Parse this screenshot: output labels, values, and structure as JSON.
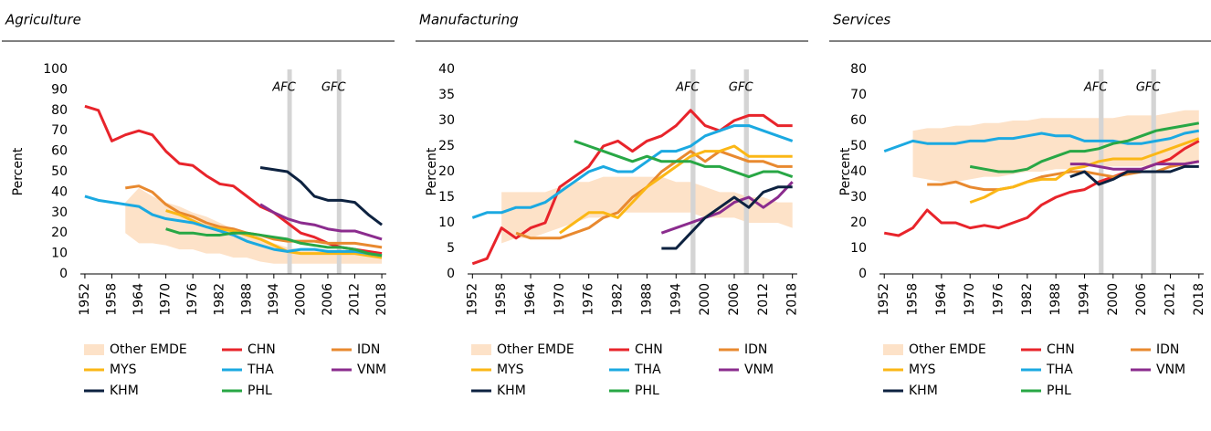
{
  "chart_data": [
    {
      "type": "line",
      "title": "Agriculture",
      "y_label": "Percent",
      "x": [
        1952,
        1955,
        1958,
        1961,
        1964,
        1967,
        1970,
        1973,
        1976,
        1979,
        1982,
        1985,
        1988,
        1991,
        1994,
        1997,
        2000,
        2003,
        2006,
        2009,
        2012,
        2015,
        2018
      ],
      "xlim": [
        1951,
        2019
      ],
      "xticks": [
        1952,
        1958,
        1964,
        1970,
        1976,
        1982,
        1988,
        1994,
        2000,
        2006,
        2012,
        2018
      ],
      "ylim": [
        0,
        100
      ],
      "yticks": [
        0,
        10,
        20,
        30,
        40,
        50,
        60,
        70,
        80,
        90,
        100
      ],
      "shaded_periods": [
        {
          "label": "AFC",
          "start": 1997,
          "end": 1998
        },
        {
          "label": "GFC",
          "start": 2008,
          "end": 2009
        }
      ],
      "series": [
        {
          "name": "Other EMDE",
          "type": "band",
          "color": "#fde2c8",
          "values": [
            null,
            null,
            null,
            [
              20,
              35
            ],
            [
              15,
              42
            ],
            [
              15,
              38
            ],
            [
              14,
              35
            ],
            [
              12,
              33
            ],
            [
              12,
              30
            ],
            [
              10,
              28
            ],
            [
              10,
              25
            ],
            [
              8,
              22
            ],
            [
              8,
              20
            ],
            [
              6,
              18
            ],
            [
              5,
              15
            ],
            [
              5,
              13
            ],
            [
              5,
              12
            ],
            [
              5,
              12
            ],
            [
              5,
              11
            ],
            [
              5,
              11
            ],
            [
              5,
              10
            ],
            [
              5,
              10
            ],
            [
              5,
              9
            ]
          ]
        },
        {
          "name": "CHN",
          "color": "#e8242b",
          "values": [
            82,
            80,
            65,
            68,
            70,
            68,
            60,
            54,
            53,
            48,
            44,
            43,
            38,
            33,
            30,
            25,
            20,
            18,
            15,
            13,
            12,
            11,
            10
          ]
        },
        {
          "name": "IDN",
          "color": "#e8892f",
          "values": [
            null,
            null,
            null,
            42,
            43,
            40,
            34,
            30,
            28,
            25,
            23,
            22,
            20,
            19,
            17,
            16,
            16,
            16,
            15,
            15,
            15,
            14,
            13
          ]
        },
        {
          "name": "MYS",
          "color": "#fbb716",
          "values": [
            null,
            null,
            null,
            null,
            null,
            null,
            31,
            29,
            26,
            23,
            22,
            21,
            19,
            17,
            14,
            11,
            10,
            10,
            10,
            10,
            10,
            9,
            8
          ]
        },
        {
          "name": "THA",
          "color": "#1ba9e1",
          "values": [
            38,
            36,
            35,
            34,
            33,
            29,
            27,
            26,
            25,
            23,
            21,
            19,
            16,
            14,
            12,
            11,
            12,
            12,
            11,
            11,
            11,
            10,
            9
          ]
        },
        {
          "name": "VNM",
          "color": "#8b2c8e",
          "values": [
            null,
            null,
            null,
            null,
            null,
            null,
            null,
            null,
            null,
            null,
            null,
            null,
            null,
            34,
            30,
            27,
            25,
            24,
            22,
            21,
            21,
            19,
            17
          ]
        },
        {
          "name": "KHM",
          "color": "#0d2240",
          "values": [
            null,
            null,
            null,
            null,
            null,
            null,
            null,
            null,
            null,
            null,
            null,
            null,
            null,
            52,
            51,
            50,
            45,
            38,
            36,
            36,
            35,
            29,
            24
          ]
        },
        {
          "name": "PHL",
          "color": "#28a745",
          "values": [
            null,
            null,
            null,
            null,
            null,
            null,
            22,
            20,
            20,
            19,
            19,
            20,
            20,
            19,
            18,
            17,
            15,
            14,
            13,
            13,
            12,
            10,
            9
          ]
        }
      ]
    },
    {
      "type": "line",
      "title": "Manufacturing",
      "y_label": "Percent",
      "x": [
        1952,
        1955,
        1958,
        1961,
        1964,
        1967,
        1970,
        1973,
        1976,
        1979,
        1982,
        1985,
        1988,
        1991,
        1994,
        1997,
        2000,
        2003,
        2006,
        2009,
        2012,
        2015,
        2018
      ],
      "xlim": [
        1951,
        2019
      ],
      "xticks": [
        1952,
        1958,
        1964,
        1970,
        1976,
        1982,
        1988,
        1994,
        2000,
        2006,
        2012,
        2018
      ],
      "ylim": [
        0,
        40
      ],
      "yticks": [
        0,
        5,
        10,
        15,
        20,
        25,
        30,
        35,
        40
      ],
      "shaded_periods": [
        {
          "label": "AFC",
          "start": 1997,
          "end": 1998
        },
        {
          "label": "GFC",
          "start": 2008,
          "end": 2009
        }
      ],
      "series": [
        {
          "name": "Other EMDE",
          "type": "band",
          "color": "#fde2c8",
          "values": [
            null,
            null,
            [
              6,
              16
            ],
            [
              7,
              16
            ],
            [
              7,
              16
            ],
            [
              8,
              16
            ],
            [
              9,
              17
            ],
            [
              10,
              18
            ],
            [
              11,
              18
            ],
            [
              11,
              19
            ],
            [
              12,
              19
            ],
            [
              12,
              19
            ],
            [
              12,
              19
            ],
            [
              12,
              19
            ],
            [
              12,
              18
            ],
            [
              12,
              18
            ],
            [
              11,
              17
            ],
            [
              11,
              16
            ],
            [
              11,
              16
            ],
            [
              10,
              15
            ],
            [
              10,
              15
            ],
            [
              10,
              14
            ],
            [
              9,
              14
            ]
          ]
        },
        {
          "name": "CHN",
          "color": "#e8242b",
          "values": [
            2,
            3,
            9,
            7,
            9,
            10,
            17,
            19,
            21,
            25,
            26,
            24,
            26,
            27,
            29,
            32,
            29,
            28,
            30,
            31,
            31,
            29,
            29
          ]
        },
        {
          "name": "IDN",
          "color": "#e8892f",
          "values": [
            null,
            null,
            null,
            8,
            7,
            7,
            7,
            8,
            9,
            11,
            12,
            15,
            17,
            20,
            22,
            24,
            22,
            24,
            23,
            22,
            22,
            21,
            21
          ]
        },
        {
          "name": "MYS",
          "color": "#fbb716",
          "values": [
            null,
            null,
            null,
            null,
            null,
            null,
            8,
            10,
            12,
            12,
            11,
            14,
            17,
            19,
            21,
            23,
            24,
            24,
            25,
            23,
            23,
            23,
            23
          ]
        },
        {
          "name": "THA",
          "color": "#1ba9e1",
          "values": [
            11,
            12,
            12,
            13,
            13,
            14,
            16,
            18,
            20,
            21,
            20,
            20,
            22,
            24,
            24,
            25,
            27,
            28,
            29,
            29,
            28,
            27,
            26
          ]
        },
        {
          "name": "VNM",
          "color": "#8b2c8e",
          "values": [
            null,
            null,
            null,
            null,
            null,
            null,
            null,
            null,
            null,
            null,
            null,
            null,
            null,
            8,
            9,
            10,
            11,
            12,
            14,
            15,
            13,
            15,
            18
          ]
        },
        {
          "name": "KHM",
          "color": "#0d2240",
          "values": [
            null,
            null,
            null,
            null,
            null,
            null,
            null,
            null,
            null,
            null,
            null,
            null,
            null,
            5,
            5,
            8,
            11,
            13,
            15,
            13,
            16,
            17,
            17
          ]
        },
        {
          "name": "PHL",
          "color": "#28a745",
          "values": [
            null,
            null,
            null,
            null,
            null,
            null,
            null,
            26,
            25,
            24,
            23,
            22,
            23,
            22,
            22,
            22,
            21,
            21,
            20,
            19,
            20,
            20,
            19
          ]
        }
      ]
    },
    {
      "type": "line",
      "title": "Services",
      "y_label": "Percent",
      "x": [
        1952,
        1955,
        1958,
        1961,
        1964,
        1967,
        1970,
        1973,
        1976,
        1979,
        1982,
        1985,
        1988,
        1991,
        1994,
        1997,
        2000,
        2003,
        2006,
        2009,
        2012,
        2015,
        2018
      ],
      "xlim": [
        1951,
        2019
      ],
      "xticks": [
        1952,
        1958,
        1964,
        1970,
        1976,
        1982,
        1988,
        1994,
        2000,
        2006,
        2012,
        2018
      ],
      "ylim": [
        0,
        80
      ],
      "yticks": [
        0,
        10,
        20,
        30,
        40,
        50,
        60,
        70,
        80
      ],
      "shaded_periods": [
        {
          "label": "AFC",
          "start": 1997,
          "end": 1998
        },
        {
          "label": "GFC",
          "start": 2008,
          "end": 2009
        }
      ],
      "series": [
        {
          "name": "Other EMDE",
          "type": "band",
          "color": "#fde2c8",
          "values": [
            null,
            null,
            [
              38,
              56
            ],
            [
              37,
              57
            ],
            [
              36,
              57
            ],
            [
              36,
              58
            ],
            [
              37,
              58
            ],
            [
              38,
              59
            ],
            [
              38,
              59
            ],
            [
              39,
              60
            ],
            [
              40,
              60
            ],
            [
              40,
              61
            ],
            [
              41,
              61
            ],
            [
              41,
              61
            ],
            [
              42,
              61
            ],
            [
              42,
              61
            ],
            [
              42,
              61
            ],
            [
              42,
              62
            ],
            [
              42,
              62
            ],
            [
              43,
              62
            ],
            [
              43,
              63
            ],
            [
              43,
              64
            ],
            [
              44,
              64
            ]
          ]
        },
        {
          "name": "CHN",
          "color": "#e8242b",
          "values": [
            16,
            15,
            18,
            25,
            20,
            20,
            18,
            19,
            18,
            20,
            22,
            27,
            30,
            32,
            33,
            36,
            38,
            40,
            41,
            43,
            45,
            49,
            52
          ]
        },
        {
          "name": "IDN",
          "color": "#e8892f",
          "values": [
            null,
            null,
            null,
            35,
            35,
            36,
            34,
            33,
            33,
            34,
            36,
            38,
            39,
            40,
            40,
            39,
            38,
            39,
            40,
            40,
            42,
            43,
            44
          ]
        },
        {
          "name": "MYS",
          "color": "#fbb716",
          "values": [
            null,
            null,
            null,
            null,
            null,
            null,
            28,
            30,
            33,
            34,
            36,
            37,
            37,
            41,
            42,
            44,
            45,
            45,
            45,
            47,
            49,
            51,
            53
          ]
        },
        {
          "name": "THA",
          "color": "#1ba9e1",
          "values": [
            48,
            50,
            52,
            51,
            51,
            51,
            52,
            52,
            53,
            53,
            54,
            55,
            54,
            54,
            52,
            52,
            52,
            51,
            51,
            52,
            53,
            55,
            56
          ]
        },
        {
          "name": "VNM",
          "color": "#8b2c8e",
          "values": [
            null,
            null,
            null,
            null,
            null,
            null,
            null,
            null,
            null,
            null,
            null,
            null,
            null,
            43,
            43,
            42,
            41,
            41,
            41,
            43,
            43,
            43,
            44
          ]
        },
        {
          "name": "KHM",
          "color": "#0d2240",
          "values": [
            null,
            null,
            null,
            null,
            null,
            null,
            null,
            null,
            null,
            null,
            null,
            null,
            null,
            38,
            40,
            35,
            37,
            40,
            40,
            40,
            40,
            42,
            42
          ]
        },
        {
          "name": "PHL",
          "color": "#28a745",
          "values": [
            null,
            null,
            null,
            null,
            null,
            null,
            42,
            41,
            40,
            40,
            41,
            44,
            46,
            48,
            48,
            49,
            51,
            52,
            54,
            56,
            57,
            58,
            59
          ]
        }
      ]
    }
  ]
}
